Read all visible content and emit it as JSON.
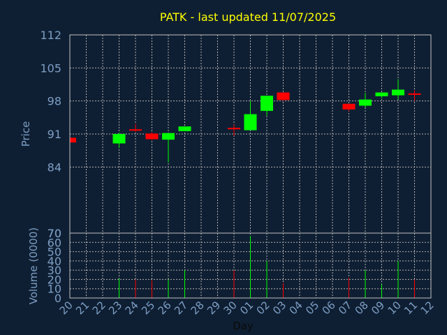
{
  "chart_data": [
    {
      "type": "candlestick",
      "title": "PATK - last updated 11/07/2025",
      "ylabel": "Price",
      "ylim": [
        70,
        112
      ],
      "yticks": [
        112,
        105,
        98,
        91,
        84,
        70
      ],
      "x": [
        "20",
        "21",
        "22",
        "23",
        "24",
        "25",
        "26",
        "27",
        "28",
        "29",
        "30",
        "01",
        "02",
        "03",
        "04",
        "05",
        "06",
        "07",
        "08",
        "09",
        "10",
        "11",
        "12"
      ],
      "candles": [
        {
          "x": "20",
          "open": 90.2,
          "high": 90.2,
          "low": 89.2,
          "close": 89.2
        },
        {
          "x": "23",
          "open": 89.0,
          "high": 91.3,
          "low": 88.0,
          "close": 91.0
        },
        {
          "x": "24",
          "open": 92.0,
          "high": 93.1,
          "low": 91.4,
          "close": 91.8
        },
        {
          "x": "25",
          "open": 91.1,
          "high": 91.4,
          "low": 89.7,
          "close": 89.9
        },
        {
          "x": "26",
          "open": 89.8,
          "high": 91.2,
          "low": 85.0,
          "close": 91.2
        },
        {
          "x": "27",
          "open": 91.6,
          "high": 92.6,
          "low": 91.6,
          "close": 92.6
        },
        {
          "x": "30",
          "open": 92.3,
          "high": 93.0,
          "low": 90.6,
          "close": 92.1
        },
        {
          "x": "01",
          "open": 91.8,
          "high": 98.0,
          "low": 91.8,
          "close": 95.2
        },
        {
          "x": "02",
          "open": 95.9,
          "high": 99.1,
          "low": 94.9,
          "close": 99.1
        },
        {
          "x": "03",
          "open": 99.8,
          "high": 99.8,
          "low": 98.0,
          "close": 98.2
        },
        {
          "x": "07",
          "open": 97.4,
          "high": 97.4,
          "low": 95.8,
          "close": 96.2
        },
        {
          "x": "08",
          "open": 97.0,
          "high": 99.7,
          "low": 96.6,
          "close": 98.3
        },
        {
          "x": "09",
          "open": 99.0,
          "high": 99.8,
          "low": 98.6,
          "close": 99.8
        },
        {
          "x": "10",
          "open": 99.2,
          "high": 102.6,
          "low": 98.4,
          "close": 100.4
        },
        {
          "x": "11",
          "open": 99.6,
          "high": 100.3,
          "low": 98.0,
          "close": 99.4
        }
      ],
      "colors": {
        "up": "#00ff00",
        "down": "#ff0000"
      }
    },
    {
      "type": "bar",
      "ylabel": "Volume (0000)",
      "xlabel": "Day",
      "ylim": [
        0,
        70
      ],
      "yticks": [
        70,
        60,
        50,
        40,
        30,
        20,
        10,
        0
      ],
      "categories": [
        "23",
        "24",
        "25",
        "26",
        "27",
        "30",
        "01",
        "02",
        "03",
        "07",
        "08",
        "09",
        "10",
        "11"
      ],
      "values": [
        21,
        20,
        19,
        20,
        30,
        30,
        67,
        40,
        16,
        22,
        30,
        15,
        40,
        20
      ],
      "bar_colors": [
        "up",
        "down",
        "down",
        "up",
        "up",
        "down",
        "up",
        "up",
        "down",
        "down",
        "up",
        "up",
        "up",
        "down"
      ]
    }
  ]
}
